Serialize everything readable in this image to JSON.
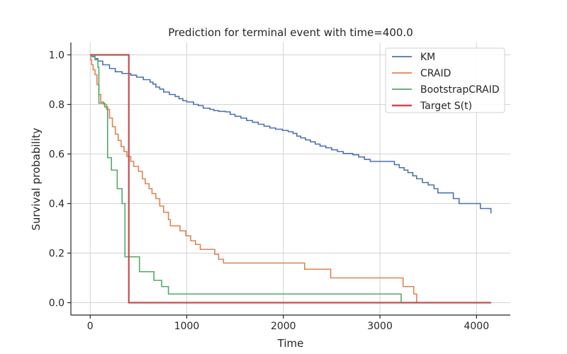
{
  "chart_data": {
    "type": "line",
    "title": "Prediction for terminal event with time=400.0",
    "xlabel": "Time",
    "ylabel": "Survival probability",
    "xlim": [
      -200,
      4350
    ],
    "ylim": [
      -0.05,
      1.05
    ],
    "xticks": [
      0,
      1000,
      2000,
      3000,
      4000
    ],
    "yticks": [
      0.0,
      0.2,
      0.4,
      0.6,
      0.8,
      1.0
    ],
    "xtick_labels": [
      "0",
      "1000",
      "2000",
      "3000",
      "4000"
    ],
    "ytick_labels": [
      "0.0",
      "0.2",
      "0.4",
      "0.6",
      "0.8",
      "1.0"
    ],
    "grid": true,
    "legend_position": "top-right",
    "series": [
      {
        "name": "KM",
        "color": "#4c72b0",
        "step": true,
        "points": [
          [
            0,
            1.0
          ],
          [
            20,
            0.993
          ],
          [
            50,
            0.985
          ],
          [
            80,
            0.975
          ],
          [
            130,
            0.96
          ],
          [
            200,
            0.945
          ],
          [
            260,
            0.932
          ],
          [
            330,
            0.925
          ],
          [
            420,
            0.918
          ],
          [
            480,
            0.91
          ],
          [
            550,
            0.9
          ],
          [
            620,
            0.89
          ],
          [
            650,
            0.882
          ],
          [
            680,
            0.87
          ],
          [
            720,
            0.862
          ],
          [
            760,
            0.85
          ],
          [
            820,
            0.84
          ],
          [
            880,
            0.832
          ],
          [
            920,
            0.823
          ],
          [
            960,
            0.815
          ],
          [
            1000,
            0.81
          ],
          [
            1070,
            0.8
          ],
          [
            1120,
            0.795
          ],
          [
            1170,
            0.785
          ],
          [
            1240,
            0.78
          ],
          [
            1280,
            0.775
          ],
          [
            1330,
            0.772
          ],
          [
            1400,
            0.77
          ],
          [
            1450,
            0.76
          ],
          [
            1500,
            0.752
          ],
          [
            1560,
            0.745
          ],
          [
            1620,
            0.735
          ],
          [
            1680,
            0.728
          ],
          [
            1740,
            0.72
          ],
          [
            1800,
            0.712
          ],
          [
            1860,
            0.705
          ],
          [
            1920,
            0.7
          ],
          [
            1990,
            0.695
          ],
          [
            2050,
            0.69
          ],
          [
            2100,
            0.683
          ],
          [
            2140,
            0.672
          ],
          [
            2180,
            0.665
          ],
          [
            2230,
            0.657
          ],
          [
            2280,
            0.649
          ],
          [
            2330,
            0.64
          ],
          [
            2380,
            0.632
          ],
          [
            2440,
            0.625
          ],
          [
            2500,
            0.617
          ],
          [
            2560,
            0.61
          ],
          [
            2620,
            0.602
          ],
          [
            2720,
            0.597
          ],
          [
            2780,
            0.588
          ],
          [
            2840,
            0.578
          ],
          [
            2900,
            0.57
          ],
          [
            3020,
            0.57
          ],
          [
            3100,
            0.57
          ],
          [
            3150,
            0.557
          ],
          [
            3200,
            0.545
          ],
          [
            3250,
            0.535
          ],
          [
            3290,
            0.525
          ],
          [
            3340,
            0.512
          ],
          [
            3380,
            0.5
          ],
          [
            3440,
            0.485
          ],
          [
            3500,
            0.475
          ],
          [
            3560,
            0.46
          ],
          [
            3600,
            0.443
          ],
          [
            3660,
            0.443
          ],
          [
            3760,
            0.42
          ],
          [
            3820,
            0.4
          ],
          [
            3900,
            0.4
          ],
          [
            4040,
            0.38
          ],
          [
            4100,
            0.38
          ],
          [
            4150,
            0.36
          ]
        ]
      },
      {
        "name": "CRAID",
        "color": "#dd8452",
        "step": true,
        "points": [
          [
            0,
            1.0
          ],
          [
            5,
            0.98
          ],
          [
            15,
            0.96
          ],
          [
            30,
            0.94
          ],
          [
            50,
            0.92
          ],
          [
            70,
            0.88
          ],
          [
            90,
            0.84
          ],
          [
            110,
            0.81
          ],
          [
            140,
            0.8
          ],
          [
            170,
            0.78
          ],
          [
            200,
            0.745
          ],
          [
            230,
            0.71
          ],
          [
            260,
            0.68
          ],
          [
            290,
            0.655
          ],
          [
            320,
            0.63
          ],
          [
            350,
            0.61
          ],
          [
            380,
            0.59
          ],
          [
            420,
            0.57
          ],
          [
            450,
            0.55
          ],
          [
            500,
            0.53
          ],
          [
            540,
            0.5
          ],
          [
            570,
            0.48
          ],
          [
            610,
            0.46
          ],
          [
            640,
            0.44
          ],
          [
            680,
            0.42
          ],
          [
            720,
            0.39
          ],
          [
            760,
            0.365
          ],
          [
            810,
            0.335
          ],
          [
            830,
            0.31
          ],
          [
            930,
            0.29
          ],
          [
            990,
            0.27
          ],
          [
            1040,
            0.25
          ],
          [
            1090,
            0.235
          ],
          [
            1140,
            0.215
          ],
          [
            1290,
            0.195
          ],
          [
            1330,
            0.175
          ],
          [
            1380,
            0.16
          ],
          [
            2220,
            0.135
          ],
          [
            2490,
            0.1
          ],
          [
            3240,
            0.065
          ],
          [
            3350,
            0.035
          ],
          [
            3380,
            0.0
          ],
          [
            4150,
            0.0
          ]
        ]
      },
      {
        "name": "BootstrapCRAID",
        "color": "#55a868",
        "step": true,
        "points": [
          [
            0,
            1.0
          ],
          [
            50,
            0.98
          ],
          [
            80,
            0.95
          ],
          [
            90,
            0.805
          ],
          [
            150,
            0.79
          ],
          [
            180,
            0.585
          ],
          [
            220,
            0.535
          ],
          [
            280,
            0.46
          ],
          [
            330,
            0.4
          ],
          [
            360,
            0.185
          ],
          [
            510,
            0.125
          ],
          [
            660,
            0.09
          ],
          [
            740,
            0.065
          ],
          [
            810,
            0.035
          ],
          [
            3220,
            0.0
          ],
          [
            4150,
            0.0
          ]
        ]
      },
      {
        "name": "Target S(t)",
        "color": "#c44e52",
        "step": true,
        "points": [
          [
            0,
            1.0
          ],
          [
            400,
            0.0
          ],
          [
            4150,
            0.0
          ]
        ]
      }
    ]
  }
}
